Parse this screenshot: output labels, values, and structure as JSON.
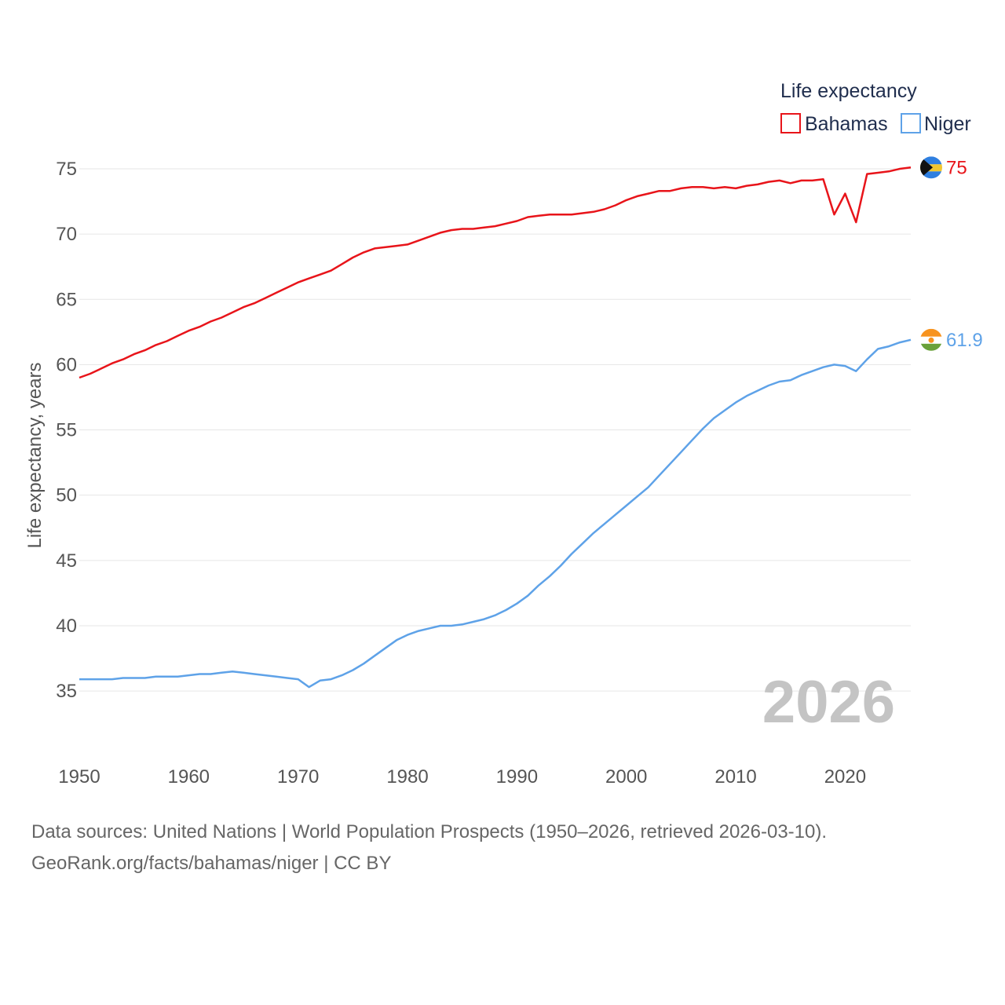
{
  "chart_data": {
    "type": "line",
    "title": "Life expectancy",
    "ylabel": "Life expectancy, years",
    "xlabel": "",
    "xlim": [
      1950,
      2026
    ],
    "ylim": [
      32.3,
      75.9
    ],
    "yticks": [
      35,
      40,
      45,
      50,
      55,
      60,
      65,
      70,
      75
    ],
    "xticks": [
      1950,
      1960,
      1970,
      1980,
      1990,
      2000,
      2010,
      2020
    ],
    "grid": true,
    "legend_position": "top-right",
    "year_stamp": "2026",
    "x": [
      1950,
      1951,
      1952,
      1953,
      1954,
      1955,
      1956,
      1957,
      1958,
      1959,
      1960,
      1961,
      1962,
      1963,
      1964,
      1965,
      1966,
      1967,
      1968,
      1969,
      1970,
      1971,
      1972,
      1973,
      1974,
      1975,
      1976,
      1977,
      1978,
      1979,
      1980,
      1981,
      1982,
      1983,
      1984,
      1985,
      1986,
      1987,
      1988,
      1989,
      1990,
      1991,
      1992,
      1993,
      1994,
      1995,
      1996,
      1997,
      1998,
      1999,
      2000,
      2001,
      2002,
      2003,
      2004,
      2005,
      2006,
      2007,
      2008,
      2009,
      2010,
      2011,
      2012,
      2013,
      2014,
      2015,
      2016,
      2017,
      2018,
      2019,
      2020,
      2021,
      2022,
      2023,
      2024,
      2025,
      2026
    ],
    "series": [
      {
        "name": "Bahamas",
        "color": "#e8141a",
        "end_label": "75",
        "flag": "bahamas-flag-icon",
        "values": [
          59.0,
          59.3,
          59.7,
          60.1,
          60.4,
          60.8,
          61.1,
          61.5,
          61.8,
          62.2,
          62.6,
          62.9,
          63.3,
          63.6,
          64.0,
          64.4,
          64.7,
          65.1,
          65.5,
          65.9,
          66.3,
          66.6,
          66.9,
          67.2,
          67.7,
          68.2,
          68.6,
          68.9,
          69.0,
          69.1,
          69.2,
          69.5,
          69.8,
          70.1,
          70.3,
          70.4,
          70.4,
          70.5,
          70.6,
          70.8,
          71.0,
          71.3,
          71.4,
          71.5,
          71.5,
          71.5,
          71.6,
          71.7,
          71.9,
          72.2,
          72.6,
          72.9,
          73.1,
          73.3,
          73.3,
          73.5,
          73.6,
          73.6,
          73.5,
          73.6,
          73.5,
          73.7,
          73.8,
          74.0,
          74.1,
          73.9,
          74.1,
          74.1,
          74.2,
          71.5,
          73.1,
          70.9,
          74.6,
          74.7,
          74.8,
          75.0,
          75.1
        ]
      },
      {
        "name": "Niger",
        "color": "#5ea2e8",
        "end_label": "61.9",
        "flag": "niger-flag-icon",
        "values": [
          35.9,
          35.9,
          35.9,
          35.9,
          36.0,
          36.0,
          36.0,
          36.1,
          36.1,
          36.1,
          36.2,
          36.3,
          36.3,
          36.4,
          36.5,
          36.4,
          36.3,
          36.2,
          36.1,
          36.0,
          35.9,
          35.3,
          35.8,
          35.9,
          36.2,
          36.6,
          37.1,
          37.7,
          38.3,
          38.9,
          39.3,
          39.6,
          39.8,
          40.0,
          40.0,
          40.1,
          40.3,
          40.5,
          40.8,
          41.2,
          41.7,
          42.3,
          43.1,
          43.8,
          44.6,
          45.5,
          46.3,
          47.1,
          47.8,
          48.5,
          49.2,
          49.9,
          50.6,
          51.5,
          52.4,
          53.3,
          54.2,
          55.1,
          55.9,
          56.5,
          57.1,
          57.6,
          58.0,
          58.4,
          58.7,
          58.8,
          59.2,
          59.5,
          59.8,
          60.0,
          59.9,
          59.5,
          60.4,
          61.2,
          61.4,
          61.7,
          61.9
        ]
      }
    ]
  },
  "legend": {
    "title": "Life expectancy",
    "items": [
      "Bahamas",
      "Niger"
    ]
  },
  "footer": {
    "line1": "Data sources: United Nations | World Population Prospects (1950–2026, retrieved 2026-03-10).",
    "line2": "GeoRank.org/facts/bahamas/niger | CC BY"
  }
}
